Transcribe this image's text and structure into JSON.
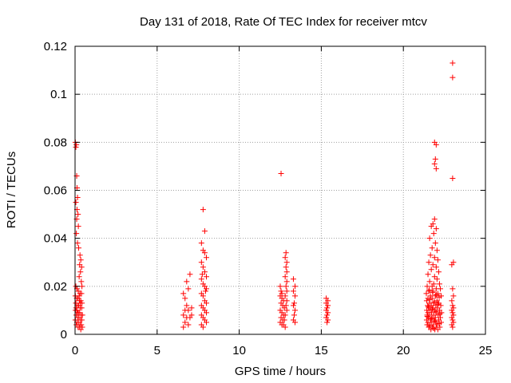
{
  "chart_data": {
    "type": "scatter",
    "title": "Day 131 of 2018, Rate Of TEC Index for receiver mtcv",
    "xlabel": "GPS time / hours",
    "ylabel": "ROTI / TECUs",
    "xlim": [
      0,
      25
    ],
    "ylim": [
      0,
      0.12
    ],
    "xticks": [
      0,
      5,
      10,
      15,
      20,
      25
    ],
    "xtick_labels": [
      "0",
      "5",
      "10",
      "15",
      "20",
      "25"
    ],
    "yticks": [
      0,
      0.02,
      0.04,
      0.06,
      0.08,
      0.1,
      0.12
    ],
    "ytick_labels": [
      "0",
      "0.02",
      "0.04",
      "0.06",
      "0.08",
      "0.1",
      "0.12"
    ],
    "grid": true,
    "marker": "plus",
    "color": "#ff0000",
    "points": [
      [
        0.02,
        0.08
      ],
      [
        0.05,
        0.078
      ],
      [
        0.08,
        0.079
      ],
      [
        0.1,
        0.066
      ],
      [
        0.12,
        0.061
      ],
      [
        0.15,
        0.057
      ],
      [
        0.05,
        0.055
      ],
      [
        0.12,
        0.052
      ],
      [
        0.18,
        0.05
      ],
      [
        0.1,
        0.048
      ],
      [
        0.2,
        0.045
      ],
      [
        0.08,
        0.042
      ],
      [
        0.15,
        0.038
      ],
      [
        0.22,
        0.036
      ],
      [
        0.3,
        0.033
      ],
      [
        0.35,
        0.031
      ],
      [
        0.28,
        0.029
      ],
      [
        0.4,
        0.028
      ],
      [
        0.33,
        0.026
      ],
      [
        0.25,
        0.024
      ],
      [
        0.38,
        0.022
      ],
      [
        0.42,
        0.02
      ],
      [
        0.05,
        0.02
      ],
      [
        0.12,
        0.019
      ],
      [
        0.2,
        0.018
      ],
      [
        0.3,
        0.017
      ],
      [
        0.02,
        0.016
      ],
      [
        0.1,
        0.015
      ],
      [
        0.18,
        0.015
      ],
      [
        0.27,
        0.014
      ],
      [
        0.35,
        0.014
      ],
      [
        0.42,
        0.013
      ],
      [
        0.05,
        0.013
      ],
      [
        0.14,
        0.012
      ],
      [
        0.22,
        0.012
      ],
      [
        0.31,
        0.011
      ],
      [
        0.4,
        0.011
      ],
      [
        0.03,
        0.01
      ],
      [
        0.11,
        0.01
      ],
      [
        0.2,
        0.009
      ],
      [
        0.28,
        0.009
      ],
      [
        0.37,
        0.008
      ],
      [
        0.45,
        0.008
      ],
      [
        0.07,
        0.008
      ],
      [
        0.16,
        0.007
      ],
      [
        0.24,
        0.007
      ],
      [
        0.33,
        0.006
      ],
      [
        0.41,
        0.006
      ],
      [
        0.02,
        0.006
      ],
      [
        0.12,
        0.005
      ],
      [
        0.21,
        0.005
      ],
      [
        0.3,
        0.004
      ],
      [
        0.38,
        0.004
      ],
      [
        0.08,
        0.004
      ],
      [
        0.18,
        0.003
      ],
      [
        0.26,
        0.003
      ],
      [
        0.35,
        0.002
      ],
      [
        0.44,
        0.003
      ],
      [
        0.06,
        0.011
      ],
      [
        0.25,
        0.016
      ],
      [
        0.39,
        0.017
      ],
      [
        0.15,
        0.009
      ],
      [
        0.32,
        0.013
      ],
      [
        6.6,
        0.017
      ],
      [
        6.7,
        0.015
      ],
      [
        6.8,
        0.012
      ],
      [
        6.7,
        0.01
      ],
      [
        6.9,
        0.01
      ],
      [
        6.6,
        0.008
      ],
      [
        6.8,
        0.007
      ],
      [
        7.0,
        0.007
      ],
      [
        6.7,
        0.005
      ],
      [
        6.9,
        0.004
      ],
      [
        6.6,
        0.003
      ],
      [
        6.8,
        0.022
      ],
      [
        7.0,
        0.025
      ],
      [
        6.9,
        0.019
      ],
      [
        7.1,
        0.011
      ],
      [
        7.1,
        0.008
      ],
      [
        7.8,
        0.052
      ],
      [
        7.9,
        0.043
      ],
      [
        7.7,
        0.038
      ],
      [
        7.8,
        0.035
      ],
      [
        7.9,
        0.034
      ],
      [
        8.0,
        0.032
      ],
      [
        7.7,
        0.03
      ],
      [
        7.8,
        0.028
      ],
      [
        7.9,
        0.026
      ],
      [
        8.0,
        0.024
      ],
      [
        7.7,
        0.023
      ],
      [
        7.8,
        0.021
      ],
      [
        7.9,
        0.02
      ],
      [
        8.0,
        0.019
      ],
      [
        7.7,
        0.017
      ],
      [
        7.8,
        0.016
      ],
      [
        7.9,
        0.014
      ],
      [
        8.0,
        0.013
      ],
      [
        7.7,
        0.012
      ],
      [
        7.8,
        0.011
      ],
      [
        7.9,
        0.01
      ],
      [
        8.0,
        0.009
      ],
      [
        7.7,
        0.008
      ],
      [
        7.8,
        0.007
      ],
      [
        7.9,
        0.006
      ],
      [
        8.0,
        0.005
      ],
      [
        7.7,
        0.004
      ],
      [
        7.8,
        0.003
      ],
      [
        7.95,
        0.018
      ],
      [
        7.75,
        0.025
      ],
      [
        12.55,
        0.067
      ],
      [
        12.5,
        0.02
      ],
      [
        12.55,
        0.018
      ],
      [
        12.6,
        0.017
      ],
      [
        12.5,
        0.016
      ],
      [
        12.6,
        0.015
      ],
      [
        12.7,
        0.014
      ],
      [
        12.55,
        0.013
      ],
      [
        12.65,
        0.012
      ],
      [
        12.75,
        0.011
      ],
      [
        12.5,
        0.01
      ],
      [
        12.6,
        0.009
      ],
      [
        12.7,
        0.008
      ],
      [
        12.8,
        0.008
      ],
      [
        12.55,
        0.007
      ],
      [
        12.65,
        0.006
      ],
      [
        12.75,
        0.006
      ],
      [
        12.5,
        0.005
      ],
      [
        12.6,
        0.004
      ],
      [
        12.7,
        0.004
      ],
      [
        12.8,
        0.003
      ],
      [
        12.85,
        0.034
      ],
      [
        12.8,
        0.032
      ],
      [
        12.9,
        0.03
      ],
      [
        12.85,
        0.028
      ],
      [
        12.9,
        0.026
      ],
      [
        12.8,
        0.024
      ],
      [
        12.9,
        0.022
      ],
      [
        12.85,
        0.02
      ],
      [
        12.9,
        0.018
      ],
      [
        12.8,
        0.016
      ],
      [
        12.9,
        0.014
      ],
      [
        12.85,
        0.012
      ],
      [
        12.9,
        0.01
      ],
      [
        13.3,
        0.023
      ],
      [
        13.4,
        0.02
      ],
      [
        13.3,
        0.018
      ],
      [
        13.4,
        0.016
      ],
      [
        13.35,
        0.013
      ],
      [
        13.3,
        0.012
      ],
      [
        13.4,
        0.01
      ],
      [
        13.35,
        0.008
      ],
      [
        13.3,
        0.006
      ],
      [
        13.4,
        0.005
      ],
      [
        15.3,
        0.015
      ],
      [
        15.4,
        0.014
      ],
      [
        15.3,
        0.013
      ],
      [
        15.4,
        0.012
      ],
      [
        15.35,
        0.011
      ],
      [
        15.3,
        0.01
      ],
      [
        15.4,
        0.009
      ],
      [
        15.35,
        0.008
      ],
      [
        15.3,
        0.007
      ],
      [
        15.4,
        0.006
      ],
      [
        15.35,
        0.005
      ],
      [
        21.9,
        0.08
      ],
      [
        22.0,
        0.079
      ],
      [
        21.95,
        0.073
      ],
      [
        21.9,
        0.071
      ],
      [
        22.0,
        0.069
      ],
      [
        21.9,
        0.048
      ],
      [
        21.8,
        0.046
      ],
      [
        21.7,
        0.045
      ],
      [
        22.0,
        0.044
      ],
      [
        21.85,
        0.042
      ],
      [
        21.6,
        0.04
      ],
      [
        21.95,
        0.038
      ],
      [
        21.75,
        0.036
      ],
      [
        22.05,
        0.035
      ],
      [
        21.65,
        0.033
      ],
      [
        21.9,
        0.032
      ],
      [
        22.1,
        0.031
      ],
      [
        21.55,
        0.03
      ],
      [
        21.8,
        0.029
      ],
      [
        22.0,
        0.028
      ],
      [
        21.7,
        0.027
      ],
      [
        22.15,
        0.026
      ],
      [
        21.5,
        0.025
      ],
      [
        21.9,
        0.024
      ],
      [
        22.05,
        0.023
      ],
      [
        21.6,
        0.022
      ],
      [
        21.85,
        0.021
      ],
      [
        22.2,
        0.021
      ],
      [
        21.45,
        0.02
      ],
      [
        21.75,
        0.02
      ],
      [
        22.0,
        0.019
      ],
      [
        22.25,
        0.019
      ],
      [
        21.55,
        0.018
      ],
      [
        21.8,
        0.018
      ],
      [
        22.1,
        0.017
      ],
      [
        21.4,
        0.017
      ],
      [
        21.65,
        0.016
      ],
      [
        21.95,
        0.016
      ],
      [
        22.3,
        0.016
      ],
      [
        21.5,
        0.015
      ],
      [
        21.75,
        0.015
      ],
      [
        22.05,
        0.014
      ],
      [
        21.42,
        0.014
      ],
      [
        21.6,
        0.013
      ],
      [
        21.85,
        0.013
      ],
      [
        22.15,
        0.013
      ],
      [
        21.48,
        0.012
      ],
      [
        21.7,
        0.012
      ],
      [
        21.98,
        0.012
      ],
      [
        22.28,
        0.012
      ],
      [
        21.55,
        0.011
      ],
      [
        21.8,
        0.011
      ],
      [
        22.08,
        0.011
      ],
      [
        21.43,
        0.01
      ],
      [
        21.63,
        0.01
      ],
      [
        21.9,
        0.01
      ],
      [
        22.2,
        0.01
      ],
      [
        21.5,
        0.009
      ],
      [
        21.72,
        0.009
      ],
      [
        22.0,
        0.009
      ],
      [
        22.32,
        0.009
      ],
      [
        21.45,
        0.008
      ],
      [
        21.6,
        0.008
      ],
      [
        21.85,
        0.008
      ],
      [
        22.12,
        0.008
      ],
      [
        21.52,
        0.007
      ],
      [
        21.75,
        0.007
      ],
      [
        21.95,
        0.007
      ],
      [
        22.25,
        0.007
      ],
      [
        21.42,
        0.006
      ],
      [
        21.65,
        0.006
      ],
      [
        21.88,
        0.006
      ],
      [
        22.15,
        0.006
      ],
      [
        21.5,
        0.005
      ],
      [
        21.7,
        0.005
      ],
      [
        21.98,
        0.005
      ],
      [
        22.3,
        0.005
      ],
      [
        21.45,
        0.004
      ],
      [
        21.6,
        0.004
      ],
      [
        21.82,
        0.004
      ],
      [
        22.05,
        0.004
      ],
      [
        21.55,
        0.003
      ],
      [
        21.78,
        0.003
      ],
      [
        22.0,
        0.003
      ],
      [
        22.22,
        0.003
      ],
      [
        21.68,
        0.002
      ],
      [
        21.92,
        0.002
      ],
      [
        22.1,
        0.002
      ],
      [
        21.58,
        0.0185
      ],
      [
        21.78,
        0.0175
      ],
      [
        22.0,
        0.0165
      ],
      [
        22.18,
        0.0155
      ],
      [
        21.62,
        0.0145
      ],
      [
        21.88,
        0.0135
      ],
      [
        22.1,
        0.0125
      ],
      [
        21.52,
        0.0115
      ],
      [
        21.76,
        0.0105
      ],
      [
        21.98,
        0.0095
      ],
      [
        22.22,
        0.0085
      ],
      [
        21.46,
        0.0075
      ],
      [
        21.7,
        0.0065
      ],
      [
        21.92,
        0.0055
      ],
      [
        22.18,
        0.0045
      ],
      [
        21.6,
        0.0035
      ],
      [
        21.84,
        0.0025
      ],
      [
        23.0,
        0.113
      ],
      [
        23.0,
        0.107
      ],
      [
        23.0,
        0.065
      ],
      [
        23.05,
        0.03
      ],
      [
        22.95,
        0.029
      ],
      [
        23.0,
        0.019
      ],
      [
        23.05,
        0.016
      ],
      [
        22.95,
        0.014
      ],
      [
        23.0,
        0.012
      ],
      [
        23.05,
        0.011
      ],
      [
        22.95,
        0.01
      ],
      [
        23.0,
        0.009
      ],
      [
        23.05,
        0.008
      ],
      [
        22.95,
        0.007
      ],
      [
        23.0,
        0.006
      ],
      [
        23.05,
        0.005
      ],
      [
        22.95,
        0.004
      ],
      [
        23.0,
        0.003
      ]
    ]
  }
}
